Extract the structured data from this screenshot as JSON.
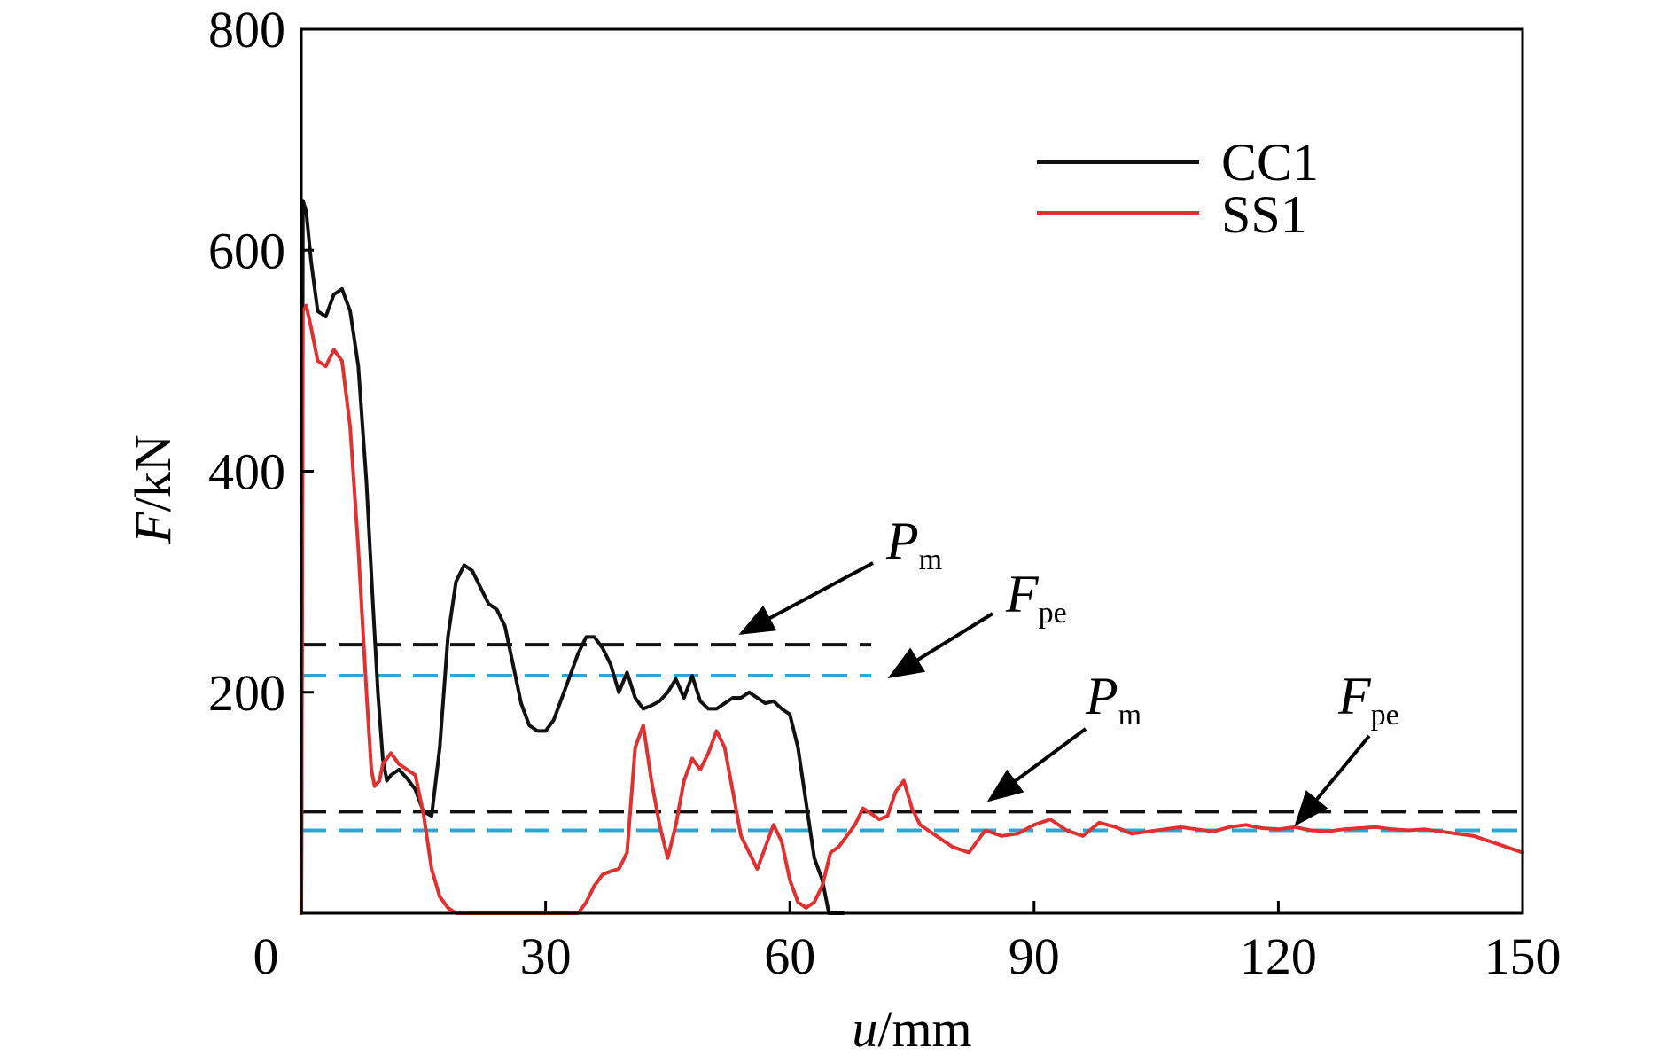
{
  "chart_data": {
    "type": "line",
    "xlabel": {
      "var": "u",
      "unit": "/mm"
    },
    "ylabel": {
      "var": "F",
      "unit": "/kN"
    },
    "xlim": [
      0,
      150
    ],
    "ylim": [
      0,
      800
    ],
    "xticks": [
      0,
      30,
      60,
      90,
      120,
      150
    ],
    "yticks": [
      0,
      200,
      400,
      600,
      800
    ],
    "xtick_labels": [
      "0",
      "30",
      "60",
      "90",
      "120",
      "150"
    ],
    "ytick_labels": [
      "200",
      "400",
      "600",
      "800"
    ],
    "grid": false,
    "legend_position": "top-right",
    "colors": {
      "CC1": "#111111",
      "SS1": "#e03030",
      "Pm": "#111111",
      "Fpe": "#2aa7d8"
    },
    "series": [
      {
        "name": "CC1",
        "color": "#111111",
        "x": [
          0,
          0.2,
          0.6,
          1.2,
          2.0,
          3.0,
          4.0,
          5.0,
          6.0,
          7.0,
          8.0,
          8.8,
          9.4,
          10.0,
          10.5,
          11.0,
          12.0,
          13.0,
          14.0,
          15.0,
          16.0,
          17.0,
          18.0,
          19.0,
          20.0,
          21.0,
          22.0,
          23.0,
          24.0,
          25.0,
          26.0,
          27.0,
          28.0,
          29.0,
          30.0,
          31.0,
          32.0,
          33.0,
          34.0,
          35.0,
          36.0,
          37.0,
          38.0,
          39.0,
          40.0,
          41.0,
          42.0,
          43.0,
          44.0,
          45.0,
          46.0,
          47.0,
          48.0,
          49.0,
          50.0,
          51.0,
          52.0,
          53.0,
          54.0,
          55.0,
          56.0,
          57.0,
          58.0,
          59.0,
          60.0,
          61.0,
          62.0,
          63.0,
          64.0,
          64.8,
          65.2,
          65.4,
          65.6,
          65.8,
          66.0,
          66.2,
          66.4,
          66.6
        ],
        "y": [
          0,
          645,
          635,
          590,
          545,
          540,
          560,
          565,
          545,
          495,
          390,
          280,
          200,
          140,
          120,
          125,
          130,
          122,
          112,
          92,
          88,
          150,
          250,
          300,
          315,
          310,
          295,
          280,
          275,
          260,
          225,
          190,
          170,
          165,
          165,
          175,
          195,
          215,
          235,
          250,
          250,
          240,
          225,
          200,
          218,
          195,
          185,
          188,
          192,
          200,
          212,
          195,
          215,
          192,
          185,
          185,
          190,
          195,
          195,
          200,
          195,
          190,
          192,
          185,
          180,
          150,
          100,
          50,
          30,
          0,
          0,
          0,
          0,
          0,
          0,
          0,
          0,
          0
        ]
      },
      {
        "name": "SS1",
        "color": "#e03030",
        "x": [
          0,
          0.2,
          0.6,
          1.2,
          2.0,
          3.0,
          4.0,
          5.0,
          6.0,
          7.0,
          8.0,
          8.6,
          9.0,
          9.6,
          10.0,
          11.0,
          12.0,
          13.0,
          14.0,
          15.0,
          16.0,
          17.0,
          18.0,
          19.0,
          20.0,
          22.0,
          24.0,
          26.0,
          28.0,
          30.0,
          31.0,
          32.0,
          33.0,
          34.0,
          35.0,
          36.0,
          37.0,
          38.0,
          39.0,
          40.0,
          41.0,
          42.0,
          43.0,
          44.0,
          45.0,
          46.0,
          47.0,
          48.0,
          49.0,
          50.0,
          51.0,
          52.0,
          53.0,
          54.0,
          55.0,
          56.0,
          57.0,
          58.0,
          59.0,
          60.0,
          61.0,
          62.0,
          63.0,
          64.0,
          65.0,
          66.0,
          67.0,
          68.0,
          69.0,
          70.0,
          71.0,
          72.0,
          73.0,
          74.0,
          75.0,
          76.0,
          77.0,
          78.0,
          79.0,
          80.0,
          82.0,
          84.0,
          86.0,
          88.0,
          90.0,
          92.0,
          94.0,
          96.0,
          98.0,
          100.0,
          102.0,
          104.0,
          106.0,
          108.0,
          110.0,
          112.0,
          114.0,
          116.0,
          118.0,
          120.0,
          122.0,
          124.0,
          126.0,
          128.0,
          130.0,
          132.0,
          134.0,
          136.0,
          138.0,
          140.0,
          142.0,
          144.0,
          146.0,
          148.0,
          150.0
        ],
        "y": [
          0,
          545,
          550,
          530,
          500,
          495,
          510,
          500,
          440,
          330,
          200,
          130,
          115,
          120,
          135,
          145,
          135,
          130,
          125,
          90,
          40,
          15,
          5,
          0,
          0,
          0,
          0,
          0,
          0,
          0,
          0,
          0,
          0,
          0,
          10,
          25,
          35,
          38,
          40,
          55,
          150,
          170,
          120,
          80,
          50,
          80,
          120,
          140,
          130,
          145,
          165,
          150,
          110,
          70,
          55,
          40,
          60,
          80,
          65,
          30,
          10,
          5,
          10,
          25,
          55,
          60,
          70,
          80,
          95,
          90,
          85,
          88,
          110,
          120,
          95,
          80,
          75,
          70,
          65,
          60,
          55,
          75,
          70,
          72,
          80,
          85,
          75,
          70,
          82,
          78,
          72,
          74,
          76,
          78,
          76,
          74,
          78,
          80,
          77,
          76,
          78,
          75,
          74,
          76,
          77,
          78,
          76,
          75,
          76,
          74,
          72,
          70,
          65,
          60,
          55
        ]
      }
    ],
    "ref_lines": [
      {
        "name": "Pm",
        "group": "CC1",
        "y": 243,
        "x_range": [
          0,
          70
        ],
        "color": "#111111",
        "style": "dashed"
      },
      {
        "name": "Fpe",
        "group": "CC1",
        "y": 215,
        "x_range": [
          0,
          70
        ],
        "color": "#2aa7d8",
        "style": "dashed"
      },
      {
        "name": "Pm",
        "group": "SS1",
        "y": 92,
        "x_range": [
          0,
          150
        ],
        "color": "#111111",
        "style": "dashed"
      },
      {
        "name": "Fpe",
        "group": "SS1",
        "y": 75,
        "x_range": [
          0,
          150
        ],
        "color": "#2aa7d8",
        "style": "dashed"
      }
    ],
    "annotations": [
      {
        "main": "P",
        "sub": "m",
        "group": "CC1"
      },
      {
        "main": "F",
        "sub": "pe",
        "group": "CC1"
      },
      {
        "main": "P",
        "sub": "m",
        "group": "SS1"
      },
      {
        "main": "F",
        "sub": "pe",
        "group": "SS1"
      }
    ]
  }
}
